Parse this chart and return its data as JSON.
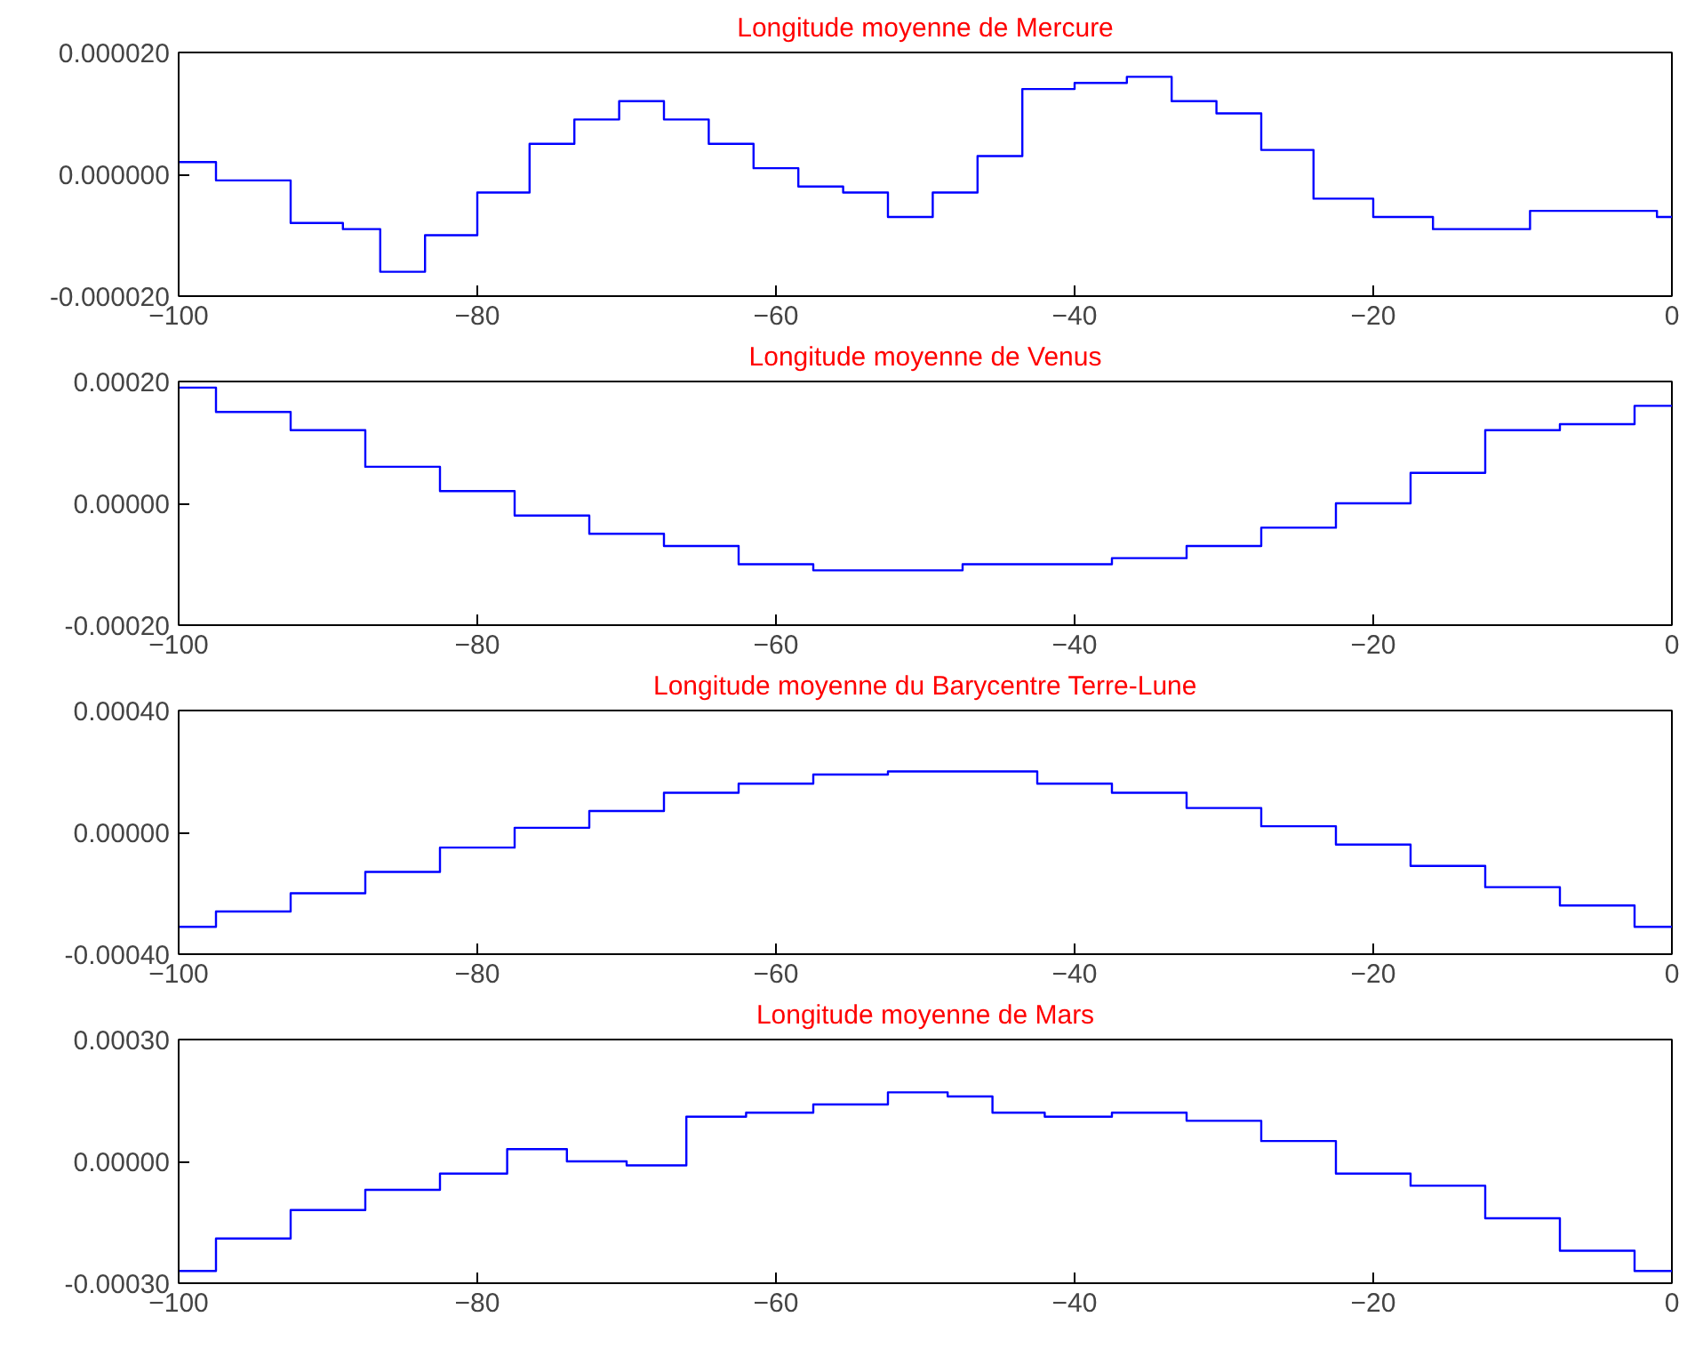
{
  "chart_data": [
    {
      "type": "step",
      "title": "Longitude moyenne de Mercure",
      "color": "#0000ff",
      "x": [
        -100,
        -95,
        -90,
        -88,
        -85,
        -82,
        -78,
        -75,
        -72,
        -69,
        -66,
        -63,
        -60,
        -57,
        -54,
        -51,
        -48,
        -45,
        -42,
        -38,
        -35,
        -32,
        -29,
        -26,
        -22,
        -18,
        -14,
        -11,
        -8,
        -5,
        -2,
        0
      ],
      "values": [
        2e-06,
        -1e-06,
        -8e-06,
        -9e-06,
        -1.6e-05,
        -1e-05,
        -3e-06,
        5e-06,
        9e-06,
        1.2e-05,
        9e-06,
        5e-06,
        1e-06,
        -2e-06,
        -3e-06,
        -7e-06,
        -3e-06,
        3e-06,
        1.4e-05,
        1.5e-05,
        1.6e-05,
        1.2e-05,
        1e-05,
        4e-06,
        -4e-06,
        -7e-06,
        -9e-06,
        -9e-06,
        -6e-06,
        -6e-06,
        -6e-06,
        -7e-06
      ],
      "xlim": [
        -100,
        0
      ],
      "ylim": [
        -2e-05,
        2e-05
      ],
      "xticks": [
        -100,
        -80,
        -60,
        -40,
        -20,
        0
      ],
      "yticks": [
        {
          "value": -2e-05,
          "label": "-0.000020"
        },
        {
          "value": 0,
          "label": "0.000000"
        },
        {
          "value": 2e-05,
          "label": "0.000020"
        }
      ]
    },
    {
      "type": "step",
      "title": "Longitude moyenne de Venus",
      "color": "#0000ff",
      "x": [
        -100,
        -95,
        -90,
        -85,
        -80,
        -75,
        -70,
        -65,
        -60,
        -55,
        -50,
        -45,
        -40,
        -35,
        -30,
        -25,
        -20,
        -15,
        -10,
        -5,
        0
      ],
      "values": [
        0.00019,
        0.00015,
        0.00012,
        6e-05,
        2e-05,
        -2e-05,
        -5e-05,
        -7e-05,
        -0.0001,
        -0.00011,
        -0.00011,
        -0.0001,
        -0.0001,
        -9e-05,
        -7e-05,
        -4e-05,
        0,
        5e-05,
        0.00012,
        0.00013,
        0.00016
      ],
      "xlim": [
        -100,
        0
      ],
      "ylim": [
        -0.0002,
        0.0002
      ],
      "xticks": [
        -100,
        -80,
        -60,
        -40,
        -20,
        0
      ],
      "yticks": [
        {
          "value": -0.0002,
          "label": "-0.00020"
        },
        {
          "value": 0,
          "label": "0.00000"
        },
        {
          "value": 0.0002,
          "label": "0.00020"
        }
      ]
    },
    {
      "type": "step",
      "title": "Longitude moyenne du Barycentre Terre-Lune",
      "color": "#0000ff",
      "x": [
        -100,
        -95,
        -90,
        -85,
        -80,
        -75,
        -70,
        -65,
        -60,
        -55,
        -50,
        -45,
        -40,
        -35,
        -30,
        -25,
        -20,
        -15,
        -10,
        -5,
        0
      ],
      "values": [
        -0.00031,
        -0.00026,
        -0.0002,
        -0.00013,
        -5e-05,
        1.5e-05,
        7e-05,
        0.00013,
        0.00016,
        0.00019,
        0.0002,
        0.0002,
        0.00016,
        0.00013,
        8e-05,
        2e-05,
        -4e-05,
        -0.00011,
        -0.00018,
        -0.00024,
        -0.00031
      ],
      "xlim": [
        -100,
        0
      ],
      "ylim": [
        -0.0004,
        0.0004
      ],
      "xticks": [
        -100,
        -80,
        -60,
        -40,
        -20,
        0
      ],
      "yticks": [
        {
          "value": -0.0004,
          "label": "-0.00040"
        },
        {
          "value": 0,
          "label": "0.00000"
        },
        {
          "value": 0.0004,
          "label": "0.00040"
        }
      ]
    },
    {
      "type": "step",
      "title": "Longitude moyenne de Mars",
      "color": "#0000ff",
      "x": [
        -100,
        -95,
        -90,
        -85,
        -80,
        -76,
        -72,
        -68,
        -64,
        -60,
        -55,
        -50,
        -47,
        -44,
        -40,
        -35,
        -30,
        -25,
        -20,
        -15,
        -10,
        -5,
        0
      ],
      "values": [
        -0.00027,
        -0.00019,
        -0.00012,
        -7e-05,
        -3e-05,
        3e-05,
        0,
        -1e-05,
        0.00011,
        0.00012,
        0.00014,
        0.00017,
        0.00016,
        0.00012,
        0.00011,
        0.00012,
        0.0001,
        5e-05,
        -3e-05,
        -6e-05,
        -0.00014,
        -0.00022,
        -0.00027
      ],
      "xlim": [
        -100,
        0
      ],
      "ylim": [
        -0.0003,
        0.0003
      ],
      "xticks": [
        -100,
        -80,
        -60,
        -40,
        -20,
        0
      ],
      "yticks": [
        {
          "value": -0.0003,
          "label": "-0.00030"
        },
        {
          "value": 0,
          "label": "0.00000"
        },
        {
          "value": 0.0003,
          "label": "0.00030"
        }
      ]
    }
  ]
}
